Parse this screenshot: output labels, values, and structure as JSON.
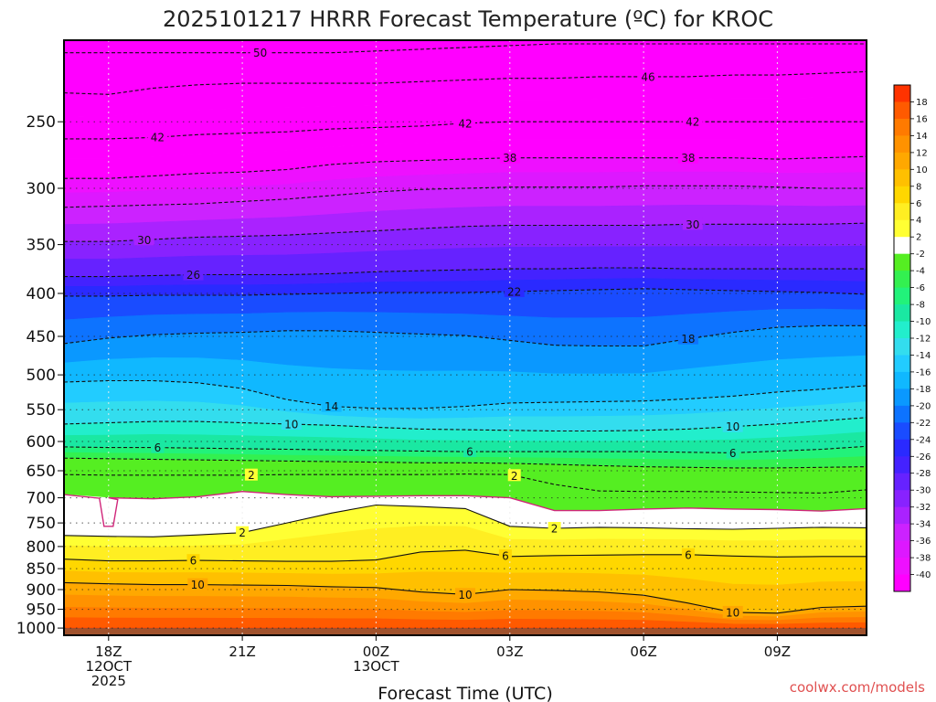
{
  "title": "2025101217 HRRR Forecast Temperature (ºC) for KROC",
  "credit": "coolwx.com/models",
  "chart_data": {
    "type": "heatmap",
    "title": "2025101217 HRRR Forecast Temperature (ºC) for KROC",
    "xlabel": "Forecast Time (UTC)",
    "ylabel": "",
    "y_axis": "pressure_hPa_log",
    "ylim": [
      1020,
      200
    ],
    "xlim": [
      17,
      35
    ],
    "yticks": [
      250,
      300,
      350,
      400,
      450,
      500,
      550,
      600,
      650,
      700,
      750,
      800,
      850,
      900,
      950,
      1000
    ],
    "ytick_labels": [
      "250",
      "300",
      "350",
      "400",
      "450",
      "500",
      "550",
      "600",
      "650",
      "700",
      "750",
      "800",
      "850",
      "900",
      "950",
      "1000"
    ],
    "xticks": [
      {
        "hour": 18,
        "lines": [
          "18Z",
          "12OCT",
          "2025"
        ]
      },
      {
        "hour": 21,
        "lines": [
          "21Z"
        ]
      },
      {
        "hour": 24,
        "lines": [
          "00Z",
          "13OCT"
        ]
      },
      {
        "hour": 27,
        "lines": [
          "03Z"
        ]
      },
      {
        "hour": 30,
        "lines": [
          "06Z"
        ]
      },
      {
        "hour": 33,
        "lines": [
          "09Z"
        ]
      }
    ],
    "grid": true,
    "colorbar": {
      "placement": "right",
      "ticks": [
        18,
        16,
        14,
        12,
        10,
        8,
        6,
        4,
        2,
        -2,
        -4,
        -6,
        -8,
        -10,
        -12,
        -14,
        -16,
        -18,
        -20,
        -22,
        -24,
        -26,
        -28,
        -30,
        -32,
        -34,
        -36,
        -38,
        -40
      ]
    },
    "x_hours": [
      17,
      18,
      19,
      20,
      21,
      22,
      23,
      24,
      25,
      26,
      27,
      28,
      29,
      30,
      31,
      32,
      33,
      34,
      35
    ],
    "isotherms": [
      {
        "temp": -50,
        "label": "50",
        "p": [
          207,
          207,
          207,
          207,
          207,
          207,
          207,
          206,
          205,
          204,
          203,
          202,
          202,
          202,
          202,
          202,
          202,
          202,
          202
        ],
        "labels": [
          21.4
        ]
      },
      {
        "temp": -46,
        "label": "46",
        "p": [
          231,
          232,
          228,
          226,
          225,
          225,
          225,
          225,
          224,
          223,
          222,
          222,
          221,
          221,
          221,
          220,
          220,
          219,
          218
        ],
        "labels": [
          30.1
        ]
      },
      {
        "temp": -42,
        "label": "42",
        "p": [
          262,
          262,
          261,
          259,
          258,
          257,
          255,
          254,
          253,
          251,
          250,
          250,
          250,
          250,
          250,
          250,
          250,
          250,
          250
        ],
        "labels": [
          19.1,
          26.0,
          31.1
        ]
      },
      {
        "temp": -38,
        "label": "38",
        "p": [
          292,
          292,
          290,
          288,
          287,
          285,
          281,
          279,
          278,
          277,
          276,
          276,
          276,
          276,
          276,
          276,
          277,
          276,
          275
        ],
        "labels": [
          27.0,
          31.0
        ]
      },
      {
        "temp": -34,
        "label": "",
        "p": [
          316,
          315,
          314,
          313,
          311,
          309,
          306,
          303,
          301,
          300,
          299,
          299,
          299,
          298,
          298,
          298,
          299,
          300,
          300
        ],
        "labels": []
      },
      {
        "temp": -30,
        "label": "30",
        "p": [
          347,
          347,
          345,
          343,
          342,
          341,
          339,
          337,
          335,
          333,
          332,
          332,
          332,
          332,
          331,
          331,
          331,
          331,
          330
        ],
        "labels": [
          18.8,
          31.1
        ]
      },
      {
        "temp": -26,
        "label": "26",
        "p": [
          382,
          382,
          381,
          380,
          380,
          380,
          379,
          377,
          376,
          375,
          374,
          374,
          373,
          373,
          374,
          374,
          374,
          374,
          374
        ],
        "labels": [
          19.9
        ]
      },
      {
        "temp": -22,
        "label": "22",
        "p": [
          403,
          403,
          402,
          402,
          402,
          401,
          400,
          399,
          399,
          399,
          398,
          397,
          396,
          395,
          396,
          397,
          398,
          399,
          401
        ],
        "labels": [
          27.1
        ]
      },
      {
        "temp": -18,
        "label": "18",
        "p": [
          459,
          452,
          448,
          446,
          445,
          443,
          443,
          445,
          447,
          449,
          455,
          461,
          462,
          462,
          453,
          445,
          439,
          437,
          437
        ],
        "labels": [
          31.0
        ]
      },
      {
        "temp": -14,
        "label": "14",
        "p": [
          510,
          508,
          508,
          511,
          519,
          535,
          545,
          548,
          548,
          545,
          540,
          539,
          538,
          537,
          534,
          530,
          524,
          520,
          515
        ],
        "labels": [
          23.0
        ]
      },
      {
        "temp": -10,
        "label": "10",
        "p": [
          572,
          570,
          568,
          568,
          570,
          572,
          574,
          577,
          580,
          581,
          582,
          583,
          583,
          582,
          580,
          576,
          572,
          567,
          562
        ],
        "labels": [
          22.1,
          32.0
        ]
      },
      {
        "temp": -6,
        "label": "6",
        "p": [
          609,
          610,
          610,
          611,
          612,
          613,
          614,
          615,
          616,
          617,
          617,
          617,
          617,
          617,
          618,
          619,
          616,
          613,
          608
        ],
        "labels": [
          19.1,
          26.1,
          32.0
        ]
      },
      {
        "temp": -2,
        "label": "",
        "p": [
          628,
          629,
          630,
          631,
          632,
          633,
          634,
          635,
          636,
          636,
          637,
          639,
          641,
          643,
          644,
          645,
          645,
          644,
          643
        ],
        "labels": []
      },
      {
        "temp": 2,
        "label": "2",
        "p": [
          657,
          658,
          658,
          658,
          658,
          657,
          657,
          657,
          657,
          656,
          657,
          675,
          687,
          688,
          688,
          689,
          690,
          691,
          685
        ],
        "labels": [
          21.2,
          27.1
        ]
      },
      {
        "temp": 0,
        "label": "",
        "p": [
          694,
          700,
          702,
          698,
          688,
          694,
          698,
          697,
          696,
          696,
          700,
          725,
          725,
          722,
          720,
          722,
          723,
          726,
          721
        ],
        "color": "#d0267a",
        "dashed": false,
        "labels": [],
        "notch": [
          18.0,
          757
        ]
      },
      {
        "temp": 2,
        "label": "2",
        "p": [
          776,
          778,
          779,
          775,
          770,
          750,
          730,
          714,
          717,
          721,
          757,
          761,
          759,
          760,
          762,
          763,
          761,
          759,
          760
        ],
        "dashed": false,
        "labels": [
          21.0,
          28.0
        ]
      },
      {
        "temp": 6,
        "label": "6",
        "p": [
          828,
          832,
          832,
          831,
          832,
          833,
          833,
          830,
          812,
          808,
          822,
          820,
          819,
          818,
          818,
          821,
          823,
          822,
          822
        ],
        "dashed": false,
        "labels": [
          19.9,
          26.9,
          31.0
        ]
      },
      {
        "temp": 10,
        "label": "10",
        "p": [
          883,
          886,
          888,
          888,
          889,
          890,
          893,
          895,
          906,
          912,
          900,
          902,
          906,
          914,
          934,
          958,
          960,
          945,
          942
        ],
        "dashed": false,
        "labels": [
          20.0,
          26.0,
          32.0
        ]
      }
    ]
  }
}
